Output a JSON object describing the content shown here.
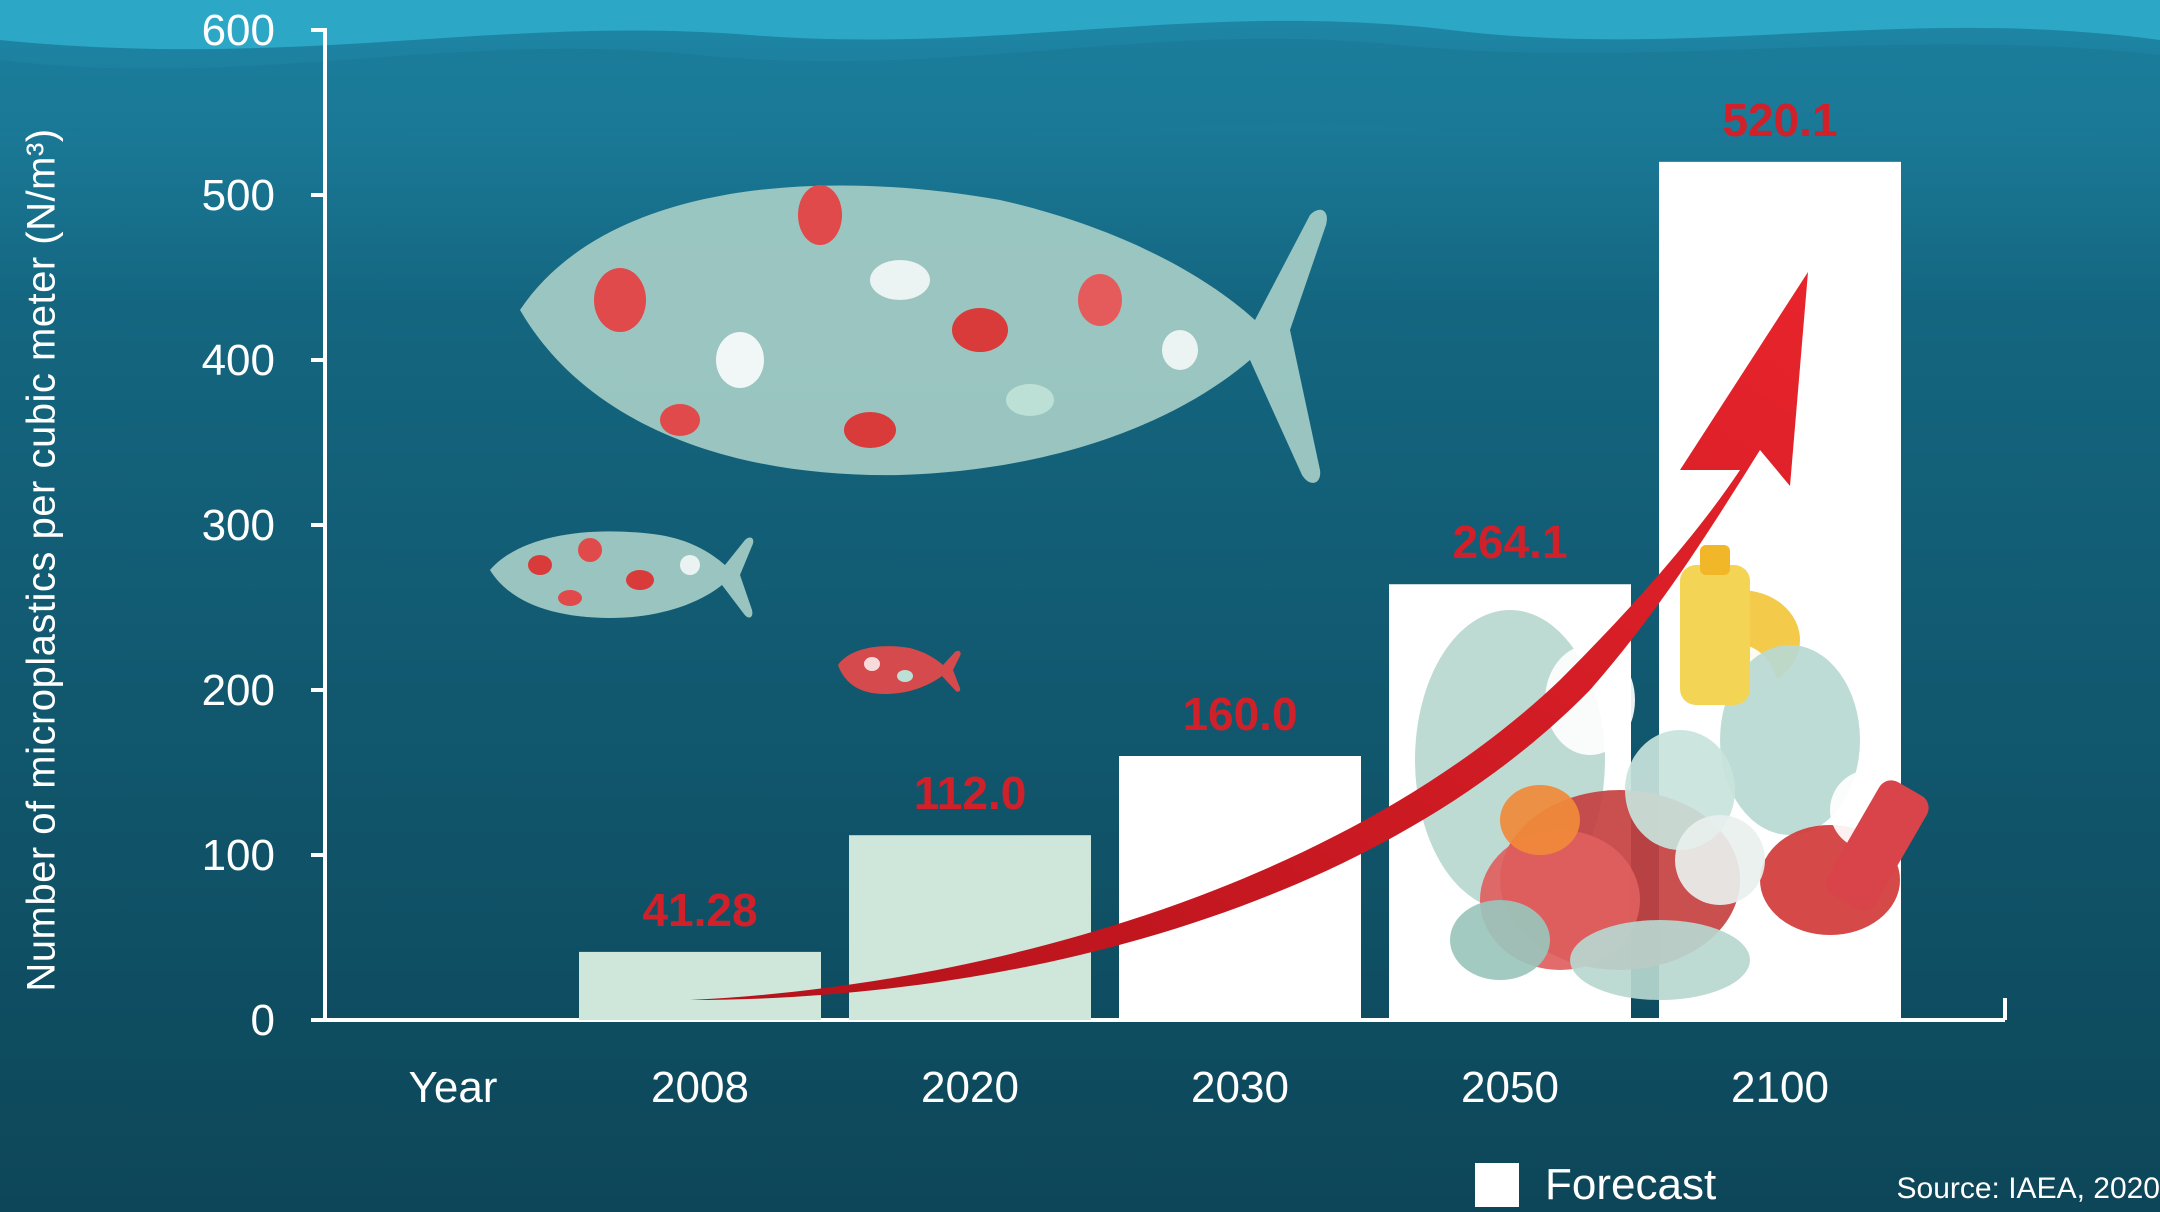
{
  "chart_data": {
    "type": "bar",
    "ylabel": "Number of microplastics per cubic meter (N/m³)",
    "xlabel": "Year",
    "categories": [
      "2008",
      "2020",
      "2030",
      "2050",
      "2100"
    ],
    "values": [
      41.28,
      112.0,
      160.0,
      264.1,
      520.1
    ],
    "value_labels": [
      "41.28",
      "112.0",
      "160.0",
      "264.1",
      "520.1"
    ],
    "forecast": [
      false,
      false,
      true,
      true,
      true
    ],
    "ylim": [
      0,
      600
    ],
    "yticks": [
      0,
      100,
      200,
      300,
      400,
      500,
      600
    ],
    "legend": {
      "label": "Forecast",
      "placement": "bottom-right"
    },
    "source": "Source: IAEA, 2020",
    "colors": {
      "background_top": "#1b7fa0",
      "background_bottom": "#0f4d63",
      "measured_bar": "#cfe6da",
      "forecast_bar": "#ffffff",
      "value_label": "#d0202a",
      "axis": "#ffffff"
    }
  }
}
